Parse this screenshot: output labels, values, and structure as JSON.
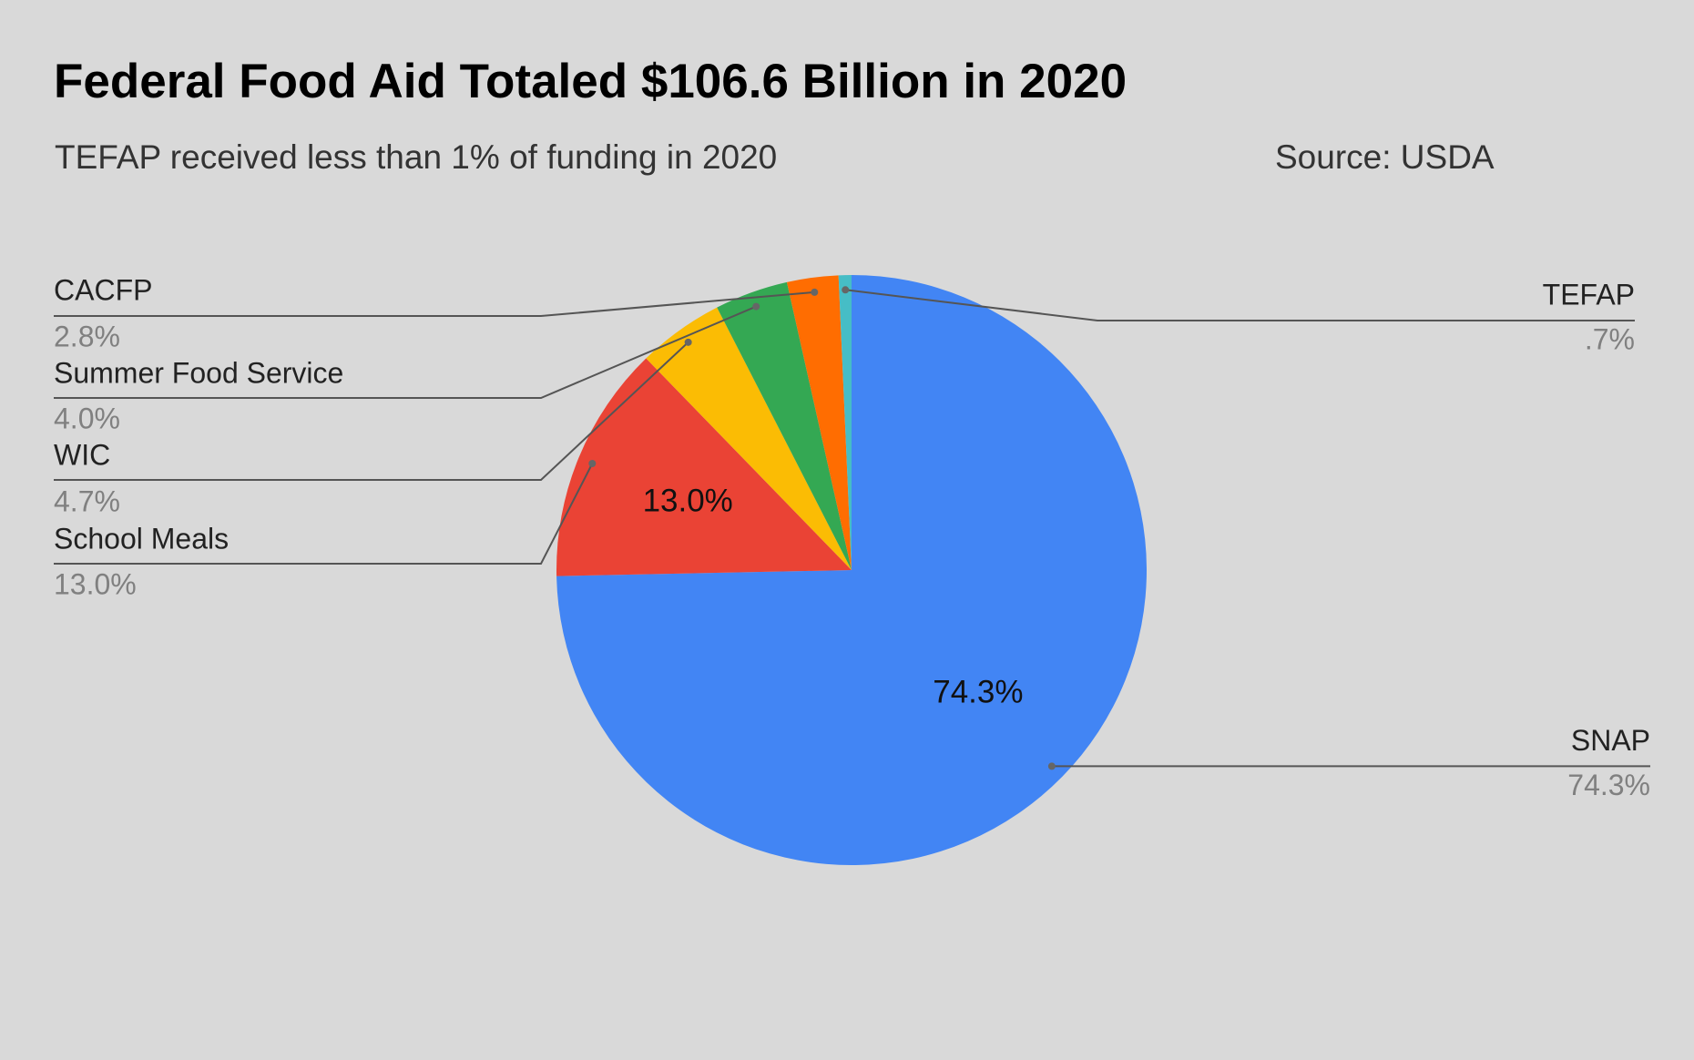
{
  "chart_data": {
    "type": "pie",
    "title": "Federal Food Aid Totaled $106.6 Billion in 2020",
    "subtitle": "TEFAP received less than 1% of funding in 2020",
    "source": "Source: USDA",
    "categories": [
      "SNAP",
      "School Meals",
      "WIC",
      "Summer Food Service",
      "CACFP",
      "TEFAP"
    ],
    "values": [
      74.3,
      13.0,
      4.7,
      4.0,
      2.8,
      0.7
    ],
    "value_labels": [
      "74.3%",
      "13.0%",
      "4.7%",
      "4.0%",
      "2.8%",
      ".7%"
    ],
    "colors": [
      "#4285f4",
      "#ea4335",
      "#fbbc04",
      "#34a853",
      "#ff6d01",
      "#46bdc6"
    ]
  }
}
